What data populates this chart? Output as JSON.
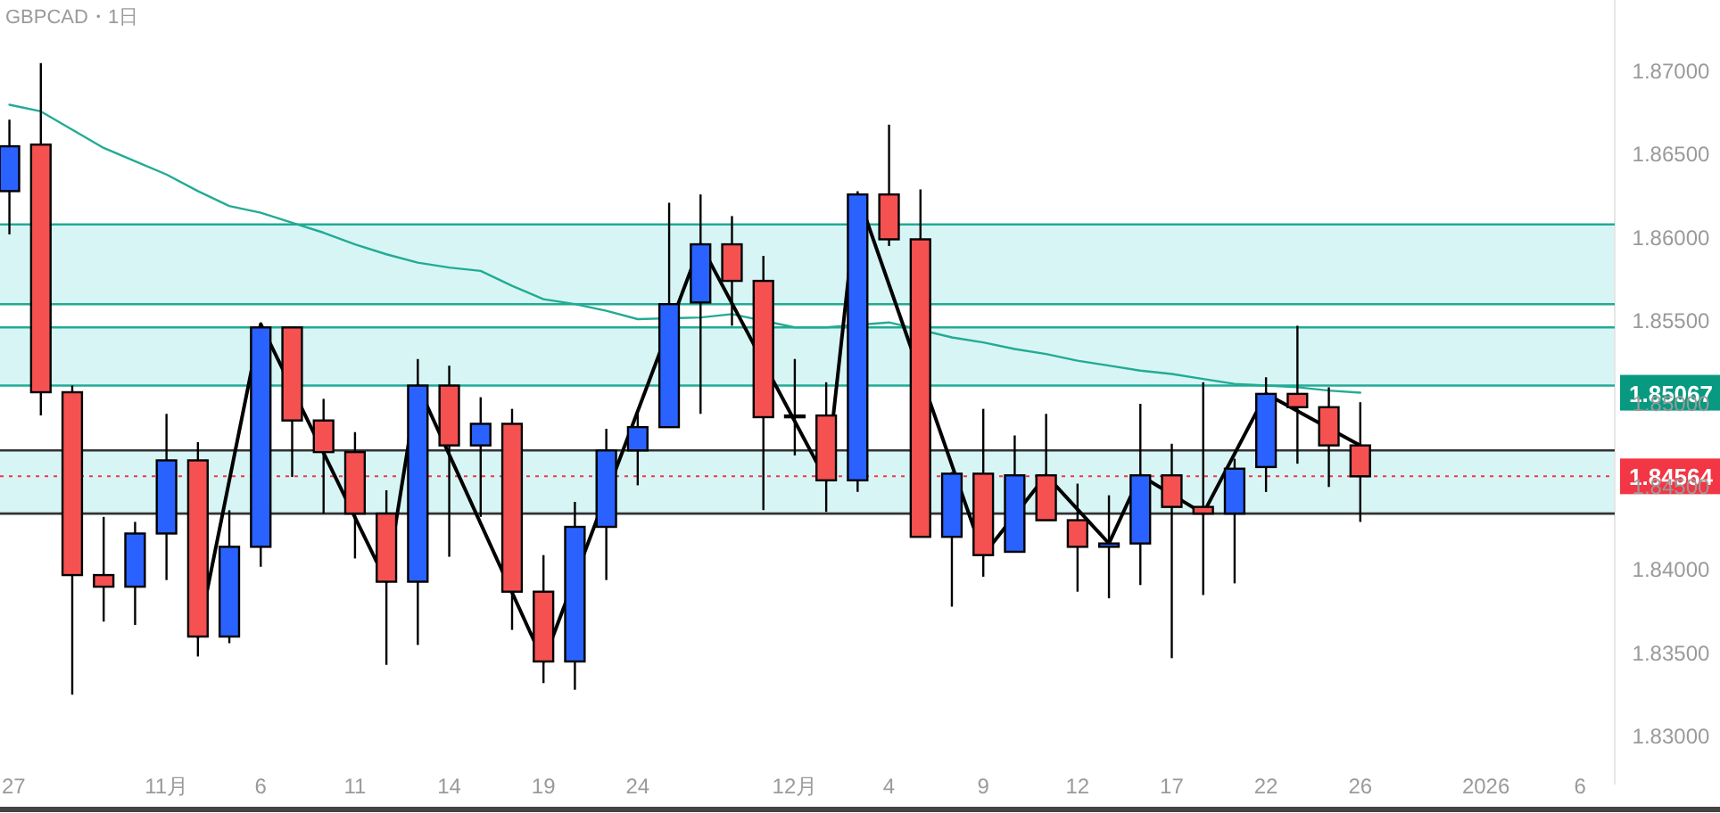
{
  "chart_data": {
    "type": "candlestick",
    "title": "GBPCAD・1日",
    "categories": [
      "27",
      null,
      null,
      null,
      null,
      "11月",
      null,
      null,
      "6",
      null,
      null,
      "11",
      null,
      null,
      "14",
      null,
      null,
      "19",
      null,
      null,
      "24",
      null,
      null,
      null,
      null,
      "12月",
      null,
      null,
      "4",
      null,
      null,
      "9",
      null,
      null,
      "12",
      null,
      null,
      "17",
      null,
      null,
      "22",
      null,
      null,
      "26",
      null,
      null,
      null,
      "2026",
      null,
      null,
      "6"
    ],
    "ohlc": [
      [
        1.8628,
        1.8671,
        1.8602,
        1.8655
      ],
      [
        1.8656,
        1.8705,
        1.8493,
        1.8507
      ],
      [
        1.8507,
        1.8511,
        1.8325,
        1.8397
      ],
      [
        1.8397,
        1.8432,
        1.8369,
        1.839
      ],
      [
        1.839,
        1.8429,
        1.8367,
        1.8422
      ],
      [
        1.8422,
        1.8494,
        1.8394,
        1.8466
      ],
      [
        1.8466,
        1.8477,
        1.8348,
        1.836
      ],
      [
        1.836,
        1.8436,
        1.8356,
        1.8414
      ],
      [
        1.8414,
        1.8548,
        1.8402,
        1.8546
      ],
      [
        1.8546,
        1.8546,
        1.8456,
        1.849
      ],
      [
        1.849,
        1.8503,
        1.8434,
        1.8471
      ],
      [
        1.8471,
        1.8483,
        1.8407,
        1.8434
      ],
      [
        1.8434,
        1.8448,
        1.8343,
        1.8393
      ],
      [
        1.8393,
        1.8527,
        1.8355,
        1.8511
      ],
      [
        1.8511,
        1.8523,
        1.8408,
        1.8475
      ],
      [
        1.8475,
        1.8504,
        1.8432,
        1.8488
      ],
      [
        1.8488,
        1.8497,
        1.8364,
        1.8387
      ],
      [
        1.8387,
        1.8409,
        1.8332,
        1.8345
      ],
      [
        1.8345,
        1.8441,
        1.8328,
        1.8426
      ],
      [
        1.8426,
        1.8485,
        1.8394,
        1.8472
      ],
      [
        1.8472,
        1.8494,
        1.8451,
        1.8486
      ],
      [
        1.8486,
        1.8621,
        1.8486,
        1.856
      ],
      [
        1.8561,
        1.8626,
        1.8494,
        1.8596
      ],
      [
        1.8596,
        1.8613,
        1.8547,
        1.8574
      ],
      [
        1.8574,
        1.8589,
        1.8436,
        1.8492
      ],
      [
        1.8493,
        1.8527,
        1.8469,
        1.8493
      ],
      [
        1.8493,
        1.8513,
        1.8435,
        1.8454
      ],
      [
        1.8454,
        1.8628,
        1.8447,
        1.8626
      ],
      [
        1.8626,
        1.8668,
        1.8595,
        1.8599
      ],
      [
        1.8599,
        1.8629,
        1.842,
        1.842
      ],
      [
        1.842,
        1.8459,
        1.8378,
        1.8458
      ],
      [
        1.8458,
        1.8497,
        1.8396,
        1.8409
      ],
      [
        1.8411,
        1.8481,
        1.8411,
        1.8457
      ],
      [
        1.8457,
        1.8494,
        1.843,
        1.843
      ],
      [
        1.843,
        1.8452,
        1.8387,
        1.8414
      ],
      [
        1.8414,
        1.8445,
        1.8383,
        1.8416
      ],
      [
        1.8416,
        1.85,
        1.8391,
        1.8457
      ],
      [
        1.8457,
        1.8476,
        1.8347,
        1.8438
      ],
      [
        1.8438,
        1.8513,
        1.8385,
        1.8434
      ],
      [
        1.8434,
        1.8467,
        1.8392,
        1.8461
      ],
      [
        1.8462,
        1.8516,
        1.8447,
        1.8506
      ],
      [
        1.8506,
        1.8547,
        1.8464,
        1.8498
      ],
      [
        1.8498,
        1.851,
        1.845,
        1.8475
      ],
      [
        1.8475,
        1.8501,
        1.8429,
        1.84564
      ],
      null,
      null,
      null,
      null,
      null,
      null,
      null
    ],
    "colors": [
      "#2962ff",
      "#f55151",
      "#f55151",
      "#f55151",
      "#2962ff",
      "#2962ff",
      "#f55151",
      "#2962ff",
      "#2962ff",
      "#f55151",
      "#f55151",
      "#f55151",
      "#f55151",
      "#2962ff",
      "#f55151",
      "#2962ff",
      "#f55151",
      "#f55151",
      "#2962ff",
      "#2962ff",
      "#2962ff",
      "#2962ff",
      "#2962ff",
      "#f55151",
      "#f55151",
      "#2962ff",
      "#f55151",
      "#2962ff",
      "#f55151",
      "#f55151",
      "#2962ff",
      "#f55151",
      "#2962ff",
      "#f55151",
      "#f55151",
      "#2962ff",
      "#2962ff",
      "#f55151",
      "#f55151",
      "#2962ff",
      "#2962ff",
      "#f55151",
      "#f55151",
      "#f55151",
      null,
      null,
      null,
      null,
      null,
      null,
      null
    ],
    "series": [
      {
        "type": "line",
        "color": "#22ab94",
        "values": [
          1.868,
          1.8676,
          1.8665,
          1.8654,
          1.8646,
          1.8638,
          1.8628,
          1.8619,
          1.8615,
          1.8609,
          1.8603,
          1.8596,
          1.859,
          1.8585,
          1.8582,
          1.858,
          1.8571,
          1.8563,
          1.856,
          1.8556,
          1.8551,
          null,
          1.8552,
          1.8554,
          null,
          1.8546,
          1.8546,
          null,
          1.8549,
          null,
          1.854,
          1.8537,
          1.8533,
          1.853,
          1.8526,
          1.8523,
          1.852,
          1.8518,
          1.8515,
          1.8512,
          1.8511,
          1.851,
          1.8508,
          1.85067,
          null,
          null,
          null,
          null,
          null,
          null,
          null
        ]
      },
      {
        "type": "line",
        "color": "#000000",
        "values": [
          null,
          null,
          null,
          null,
          null,
          null,
          1.836,
          null,
          1.8548,
          null,
          null,
          null,
          1.8393,
          1.8511,
          null,
          null,
          null,
          1.8345,
          null,
          null,
          null,
          null,
          1.8596,
          null,
          null,
          null,
          1.8454,
          1.8626,
          null,
          null,
          null,
          1.8409,
          null,
          1.8457,
          null,
          1.8416,
          1.8457,
          null,
          1.8434,
          null,
          1.8506,
          null,
          null,
          1.8475,
          null,
          null,
          null,
          null,
          null,
          null,
          null
        ]
      }
    ],
    "bands": [
      {
        "axis": "y",
        "from": 1.856,
        "to": 1.8608,
        "color": "#d7f5f5"
      },
      {
        "axis": "y",
        "from": 1.8511,
        "to": 1.8546,
        "color": "#d7f5f5"
      },
      {
        "axis": "y",
        "from": 1.8434,
        "to": 1.8472,
        "color": "#d7f5f5"
      }
    ],
    "ref_lines": [
      {
        "axis": "y",
        "value": 1.84564,
        "label": "1.84564",
        "color": "#f23645",
        "line_style": "dotted"
      },
      {
        "axis": "y",
        "value": 1.8608,
        "color": "#22ab94"
      },
      {
        "axis": "y",
        "value": 1.856,
        "color": "#22ab94"
      },
      {
        "axis": "y",
        "value": 1.8546,
        "color": "#22ab94"
      },
      {
        "axis": "y",
        "value": 1.8511,
        "color": "#22ab94"
      },
      {
        "axis": "y",
        "value": 1.8472,
        "color": "#333333"
      },
      {
        "axis": "y",
        "value": 1.8434,
        "color": "#333333"
      }
    ],
    "annotations": [
      "1.85067"
    ],
    "ylim": [
      1.8271,
      1.8743
    ],
    "yticks": [
      {
        "value": 1.83,
        "label": "1.83000"
      },
      {
        "value": 1.835,
        "label": "1.83500"
      },
      {
        "value": 1.84,
        "label": "1.84000"
      },
      {
        "value": 1.845,
        "label": "1.84500"
      },
      {
        "value": 1.85,
        "label": "1.85000"
      },
      {
        "value": 1.855,
        "label": "1.85500"
      },
      {
        "value": 1.86,
        "label": "1.86000"
      },
      {
        "value": 1.865,
        "label": "1.86500"
      },
      {
        "value": 1.87,
        "label": "1.87000"
      }
    ],
    "grid": false
  }
}
